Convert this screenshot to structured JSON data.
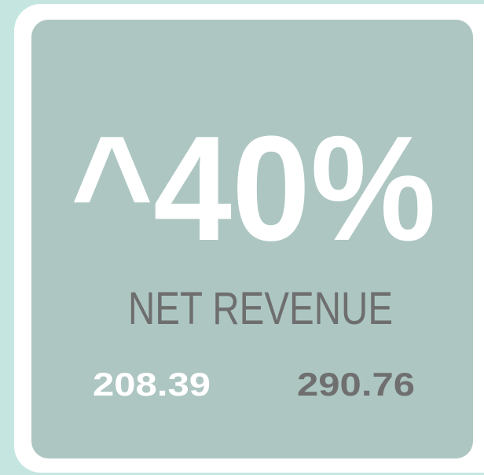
{
  "card": {
    "headline": "^40%",
    "label": "NET REVENUE",
    "values": [
      "208.39",
      "290.76"
    ]
  }
}
